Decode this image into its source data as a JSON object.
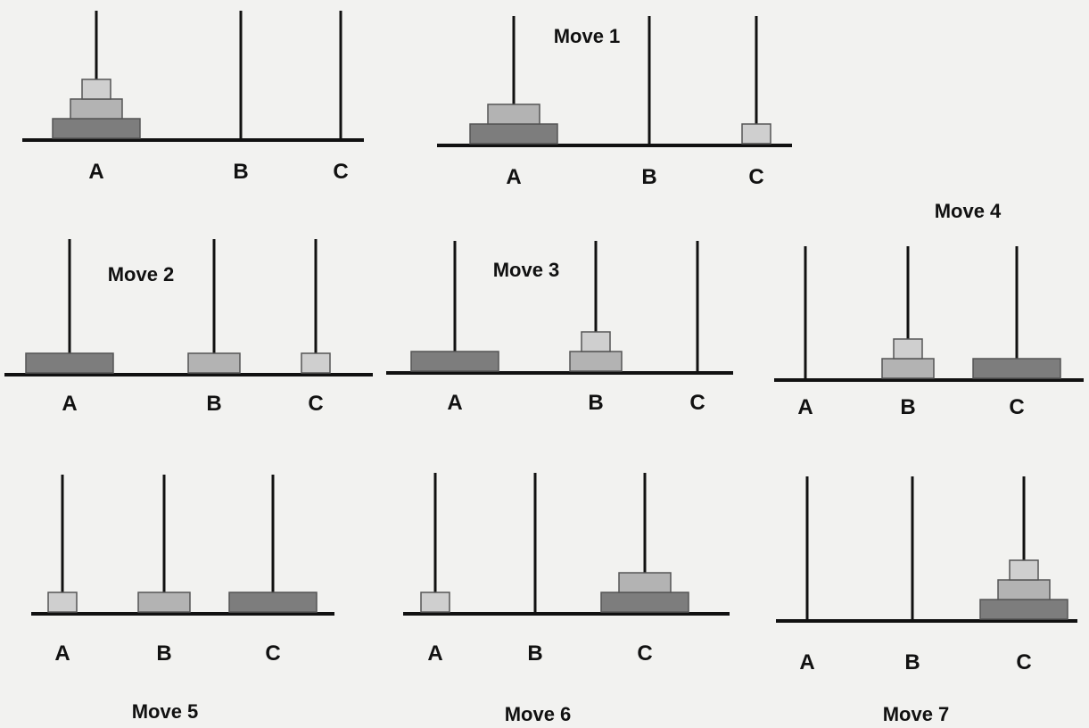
{
  "colors": {
    "background": "#f2f2f0",
    "line": "#111111",
    "disk_small": "#cfcfcf",
    "disk_medium": "#b3b3b3",
    "disk_large": "#7d7d7d"
  },
  "pegs": [
    "A",
    "B",
    "C"
  ],
  "disk_sizes": [
    "small",
    "medium",
    "large"
  ],
  "states": [
    {
      "caption": "",
      "A": [
        "large",
        "medium",
        "small"
      ],
      "B": [],
      "C": []
    },
    {
      "caption": "Move 1",
      "A": [
        "large",
        "medium"
      ],
      "B": [],
      "C": [
        "small"
      ]
    },
    {
      "caption": "Move 2",
      "A": [
        "large"
      ],
      "B": [
        "medium"
      ],
      "C": [
        "small"
      ]
    },
    {
      "caption": "Move 3",
      "A": [
        "large"
      ],
      "B": [
        "medium",
        "small"
      ],
      "C": []
    },
    {
      "caption": "Move 4",
      "A": [],
      "B": [
        "medium",
        "small"
      ],
      "C": [
        "large"
      ]
    },
    {
      "caption": "Move 5",
      "A": [
        "small"
      ],
      "B": [
        "medium"
      ],
      "C": [
        "large"
      ]
    },
    {
      "caption": "Move 6",
      "A": [
        "small"
      ],
      "B": [],
      "C": [
        "large",
        "medium"
      ]
    },
    {
      "caption": "Move 7",
      "A": [],
      "B": [],
      "C": [
        "large",
        "medium",
        "small"
      ]
    }
  ]
}
